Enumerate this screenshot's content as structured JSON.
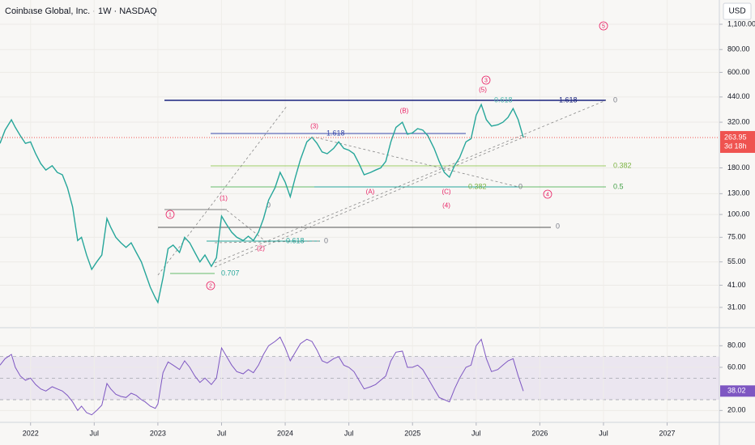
{
  "header": {
    "currency": "USD",
    "countdown": "3d 18h"
  },
  "chart_data": [
    {
      "type": "line",
      "title": "Coinbase Global, Inc. · 1W · NASDAQ",
      "log_scale": true,
      "grid": true,
      "x": [
        2021.76,
        2021.8,
        2021.85,
        2021.88,
        2021.92,
        2021.96,
        2022.0,
        2022.04,
        2022.08,
        2022.12,
        2022.17,
        2022.21,
        2022.25,
        2022.29,
        2022.33,
        2022.37,
        2022.4,
        2022.44,
        2022.48,
        2022.52,
        2022.56,
        2022.6,
        2022.63,
        2022.67,
        2022.71,
        2022.75,
        2022.79,
        2022.83,
        2022.87,
        2022.9,
        2022.94,
        2022.98,
        2023.0,
        2023.04,
        2023.08,
        2023.12,
        2023.17,
        2023.21,
        2023.25,
        2023.29,
        2023.33,
        2023.37,
        2023.42,
        2023.46,
        2023.5,
        2023.54,
        2023.58,
        2023.62,
        2023.67,
        2023.71,
        2023.75,
        2023.79,
        2023.83,
        2023.87,
        2023.92,
        2023.96,
        2024.0,
        2024.04,
        2024.08,
        2024.12,
        2024.17,
        2024.21,
        2024.25,
        2024.29,
        2024.33,
        2024.38,
        2024.42,
        2024.46,
        2024.5,
        2024.54,
        2024.58,
        2024.62,
        2024.67,
        2024.71,
        2024.75,
        2024.79,
        2024.83,
        2024.87,
        2024.92,
        2024.96,
        2025.0,
        2025.04,
        2025.08,
        2025.12,
        2025.17,
        2025.21,
        2025.25,
        2025.29,
        2025.33,
        2025.37,
        2025.42,
        2025.46,
        2025.5,
        2025.54,
        2025.58,
        2025.62,
        2025.67,
        2025.71,
        2025.75,
        2025.79,
        2025.83,
        2025.87
      ],
      "series": [
        {
          "color": "#26a69a",
          "values": [
            245,
            290,
            330,
            300,
            270,
            245,
            250,
            215,
            190,
            175,
            185,
            170,
            165,
            140,
            110,
            72,
            75,
            60,
            50,
            55,
            60,
            95,
            85,
            75,
            70,
            66,
            70,
            62,
            55,
            48,
            40,
            35,
            33,
            45,
            65,
            68,
            62,
            75,
            70,
            62,
            55,
            60,
            52,
            58,
            98,
            88,
            80,
            75,
            72,
            76,
            72,
            80,
            95,
            120,
            140,
            170,
            150,
            125,
            160,
            200,
            250,
            265,
            245,
            220,
            215,
            230,
            250,
            230,
            225,
            215,
            190,
            165,
            170,
            175,
            180,
            195,
            250,
            300,
            320,
            275,
            280,
            295,
            290,
            270,
            230,
            195,
            170,
            160,
            185,
            205,
            250,
            260,
            350,
            400,
            330,
            305,
            310,
            320,
            340,
            380,
            330,
            263.95
          ]
        }
      ],
      "xlim": [
        2021.76,
        2027.41
      ],
      "ylim": [
        24,
        1494
      ],
      "yticks": [
        {
          "value": 31,
          "label": "31.00"
        },
        {
          "value": 41,
          "label": "41.00"
        },
        {
          "value": 55,
          "label": "55.00"
        },
        {
          "value": 75,
          "label": "75.00"
        },
        {
          "value": 100,
          "label": "100.00"
        },
        {
          "value": 130,
          "label": "130.00"
        },
        {
          "value": 180,
          "label": "180.00"
        },
        {
          "value": 320,
          "label": "320.00"
        },
        {
          "value": 440,
          "label": "440.00"
        },
        {
          "value": 600,
          "label": "600.00"
        },
        {
          "value": 800,
          "label": "800.00"
        },
        {
          "value": 1100,
          "label": "1,100.00"
        }
      ],
      "annotations": [
        "1",
        "2",
        "(1)",
        "(2)",
        "(3)",
        "(A)",
        "(B)",
        "(C)",
        "(4)",
        "(5)",
        "3",
        "4",
        "5"
      ],
      "fib_labels": [
        "1.618",
        "0",
        "0.618",
        "1.618",
        "0.382",
        "0.5",
        "0.382",
        "0",
        "0",
        "0",
        "0.618",
        "0",
        "0.707"
      ]
    },
    {
      "type": "line",
      "grid": true,
      "x": [
        2021.76,
        2021.8,
        2021.85,
        2021.88,
        2021.92,
        2021.96,
        2022.0,
        2022.04,
        2022.08,
        2022.12,
        2022.17,
        2022.21,
        2022.25,
        2022.29,
        2022.33,
        2022.37,
        2022.4,
        2022.44,
        2022.48,
        2022.52,
        2022.56,
        2022.6,
        2022.63,
        2022.67,
        2022.71,
        2022.75,
        2022.79,
        2022.83,
        2022.87,
        2022.9,
        2022.94,
        2022.98,
        2023.0,
        2023.04,
        2023.08,
        2023.12,
        2023.17,
        2023.21,
        2023.25,
        2023.29,
        2023.33,
        2023.37,
        2023.42,
        2023.46,
        2023.5,
        2023.54,
        2023.58,
        2023.62,
        2023.67,
        2023.71,
        2023.75,
        2023.79,
        2023.83,
        2023.87,
        2023.92,
        2023.96,
        2024.0,
        2024.04,
        2024.08,
        2024.12,
        2024.17,
        2024.21,
        2024.25,
        2024.29,
        2024.33,
        2024.38,
        2024.42,
        2024.46,
        2024.5,
        2024.54,
        2024.58,
        2024.62,
        2024.67,
        2024.71,
        2024.75,
        2024.79,
        2024.83,
        2024.87,
        2024.92,
        2024.96,
        2025.0,
        2025.04,
        2025.08,
        2025.12,
        2025.17,
        2025.21,
        2025.25,
        2025.29,
        2025.33,
        2025.37,
        2025.42,
        2025.46,
        2025.5,
        2025.54,
        2025.58,
        2025.62,
        2025.67,
        2025.71,
        2025.75,
        2025.79,
        2025.83,
        2025.87
      ],
      "series": [
        {
          "color": "#7e57c2",
          "values": [
            62,
            68,
            72,
            60,
            52,
            48,
            50,
            44,
            40,
            38,
            42,
            40,
            38,
            34,
            28,
            20,
            24,
            18,
            16,
            20,
            25,
            45,
            40,
            35,
            33,
            32,
            36,
            34,
            30,
            28,
            24,
            22,
            26,
            55,
            65,
            62,
            58,
            66,
            60,
            52,
            46,
            50,
            44,
            50,
            78,
            70,
            62,
            56,
            54,
            58,
            55,
            62,
            72,
            80,
            84,
            88,
            78,
            66,
            74,
            82,
            86,
            84,
            76,
            66,
            64,
            68,
            70,
            62,
            60,
            56,
            48,
            40,
            42,
            44,
            48,
            52,
            66,
            74,
            75,
            60,
            60,
            62,
            58,
            50,
            40,
            32,
            30,
            28,
            40,
            50,
            60,
            62,
            80,
            86,
            68,
            56,
            58,
            62,
            66,
            68,
            52,
            38.02
          ]
        }
      ],
      "band": [
        30,
        70
      ],
      "levels": [
        30,
        50,
        70
      ],
      "xlim": [
        2021.76,
        2027.41
      ],
      "ylim": [
        9,
        93
      ],
      "yticks": [
        {
          "value": 20,
          "label": "20.00"
        },
        {
          "value": 60,
          "label": "60.00"
        },
        {
          "value": 80,
          "label": "80.00"
        }
      ],
      "xticks": [
        2022,
        {
          "value": 2022.5,
          "label": "Jul"
        },
        2023,
        {
          "value": 2023.5,
          "label": "Jul"
        },
        2024,
        {
          "value": 2024.5,
          "label": "Jul"
        },
        2025,
        {
          "value": 2025.5,
          "label": "Jul"
        },
        2026,
        {
          "value": 2026.5,
          "label": "Jul"
        },
        2027
      ]
    }
  ]
}
